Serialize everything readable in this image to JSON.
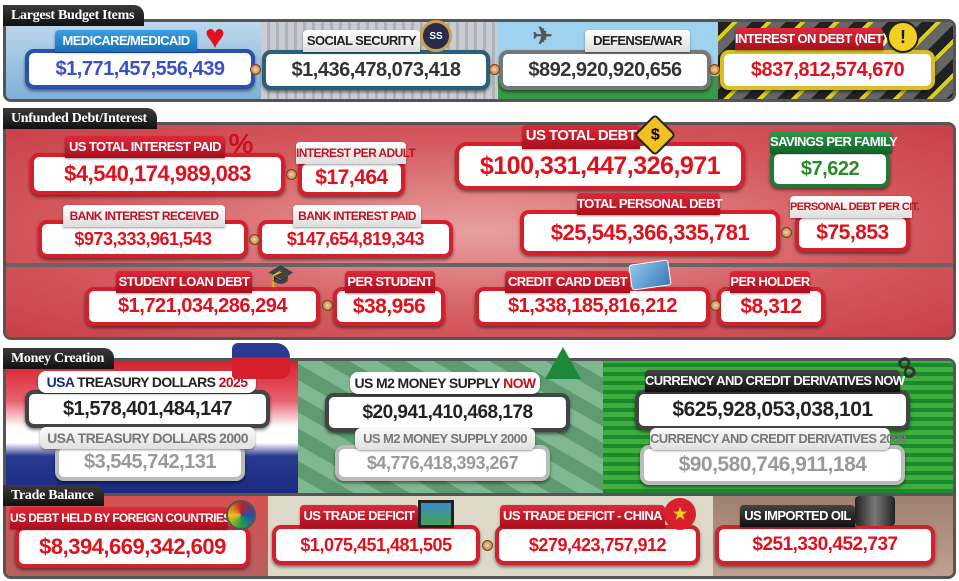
{
  "sections": {
    "budget": {
      "title": "Largest Budget Items",
      "medicare": {
        "label": "MEDICARE/MEDICAID",
        "value": "$1,771,457,556,439"
      },
      "social_security": {
        "label": "SOCIAL SECURITY",
        "value": "$1,436,478,073,418"
      },
      "defense": {
        "label": "DEFENSE/WAR",
        "value": "$892,920,920,656"
      },
      "interest_net": {
        "label": "INTEREST ON DEBT (NET)",
        "value": "$837,812,574,670"
      }
    },
    "unfunded": {
      "title": "Unfunded Debt/Interest",
      "total_interest": {
        "label": "US TOTAL INTEREST PAID",
        "value": "$4,540,174,989,083"
      },
      "interest_adult": {
        "label": "INTEREST PER ADULT",
        "value": "$17,464"
      },
      "bank_received": {
        "label": "BANK INTEREST RECEIVED",
        "value": "$973,333,961,543"
      },
      "bank_paid": {
        "label": "BANK INTEREST PAID",
        "value": "$147,654,819,343"
      },
      "total_debt": {
        "label": "US TOTAL DEBT",
        "value": "$100,331,447,326,971"
      },
      "savings": {
        "label": "SAVINGS PER FAMILY",
        "value": "$7,622"
      },
      "personal_debt": {
        "label": "TOTAL PERSONAL DEBT",
        "value": "$25,545,366,335,781"
      },
      "personal_per_cit": {
        "label": "PERSONAL DEBT PER CIT.",
        "value": "$75,853"
      },
      "student_loan": {
        "label": "STUDENT LOAN DEBT",
        "value": "$1,721,034,286,294"
      },
      "per_student": {
        "label": "PER STUDENT",
        "value": "$38,956"
      },
      "credit_card": {
        "label": "CREDIT CARD DEBT",
        "value": "$1,338,185,816,212"
      },
      "per_holder": {
        "label": "PER HOLDER",
        "value": "$8,312"
      }
    },
    "money": {
      "title": "Money Creation",
      "treasury_now": {
        "label_a": "USA",
        "label_b": "TREASURY DOLLARS",
        "label_c": "2025",
        "value": "$1,578,401,484,147"
      },
      "treasury_2000": {
        "label": "USA TREASURY DOLLARS 2000",
        "value": "$3,545,742,131"
      },
      "m2_now": {
        "label_a": "US M2 MONEY SUPPLY",
        "label_b": "NOW",
        "value": "$20,941,410,468,178"
      },
      "m2_2000": {
        "label": "US M2 MONEY SUPPLY 2000",
        "value": "$4,776,418,393,267"
      },
      "deriv_now": {
        "label": "CURRENCY AND CREDIT DERIVATIVES NOW",
        "value": "$625,928,053,038,101"
      },
      "deriv_2000": {
        "label": "CURRENCY AND CREDIT DERIVATIVES 2000",
        "value": "$90,580,746,911,184"
      }
    },
    "trade": {
      "title": "Trade Balance",
      "foreign_held": {
        "label": "US DEBT HELD BY FOREIGN COUNTRIES",
        "value": "$8,394,669,342,609"
      },
      "trade_deficit": {
        "label": "US TRADE DEFICIT",
        "value": "$1,075,451,481,505"
      },
      "china_deficit": {
        "label": "US TRADE DEFICIT - CHINA",
        "value": "$279,423,757,912"
      },
      "imported_oil": {
        "label": "US IMPORTED OIL",
        "value": "$251,330,452,737"
      }
    }
  },
  "icons": {
    "percent": "%",
    "dollar": "$",
    "warning": "!",
    "ss_seal": "SS"
  },
  "colors": {
    "red": "#e0101c",
    "blue": "#3a4fc8",
    "green": "#2a8a2a",
    "gray": "#999999"
  }
}
